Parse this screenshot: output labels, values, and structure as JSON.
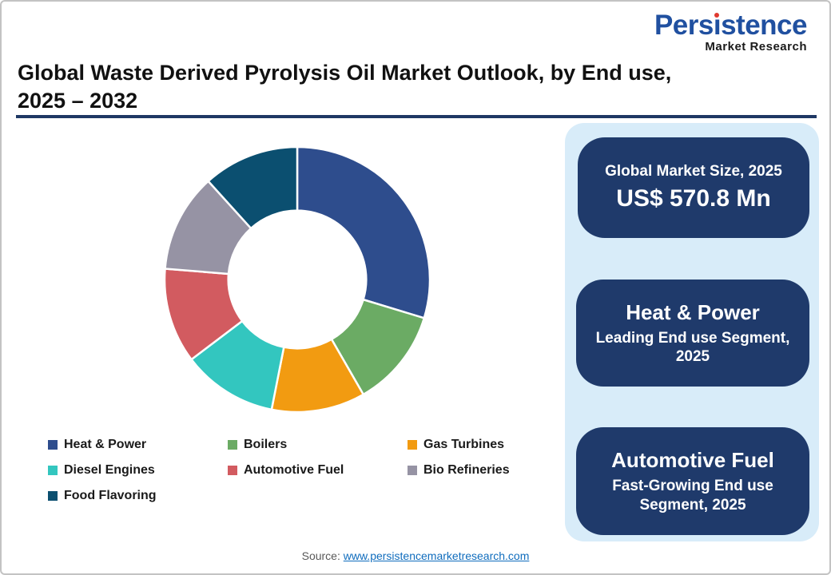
{
  "logo": {
    "brand": "Persistence",
    "subtitle": "Market Research"
  },
  "header": {
    "title_line1": "Global Waste Derived Pyrolysis Oil Market Outlook, by End use,",
    "title_line2": "2025 – 2032"
  },
  "chart_data": {
    "type": "pie",
    "subtype": "donut",
    "title": "Global Waste Derived Pyrolysis Oil Market Outlook, by End use, 2025 – 2032",
    "categories": [
      "Heat & Power",
      "Boilers",
      "Gas Turbines",
      "Diesel Engines",
      "Automotive Fuel",
      "Bio Refineries",
      "Food Flavoring"
    ],
    "values": [
      29.7,
      12.0,
      11.4,
      11.6,
      11.6,
      12.0,
      11.7
    ],
    "values_note": "estimated % share of total, read from arc angles (no data labels shown)",
    "colors": [
      "#2E4D8D",
      "#6BAB64",
      "#F29B11",
      "#33C6BF",
      "#D25B60",
      "#9693A4",
      "#0B4F70"
    ],
    "start_angle_deg": 0,
    "direction": "clockwise",
    "inner_radius_ratio": 0.52,
    "gap_color": "#FFFFFF",
    "legend_position": "bottom"
  },
  "sidebar": {
    "panel_color": "#D8ECF9",
    "box_color": "#1F3A6B",
    "boxes": [
      {
        "line1": "Global Market Size, 2025",
        "line2": "US$ 570.8 Mn"
      },
      {
        "line1": "Heat & Power",
        "line2": "Leading End use Segment, 2025"
      },
      {
        "line1": "Automotive Fuel",
        "line2": "Fast-Growing End use Segment, 2025"
      }
    ]
  },
  "footer": {
    "source_label": "Source:",
    "source_url": "www.persistencemarketresearch.com"
  }
}
